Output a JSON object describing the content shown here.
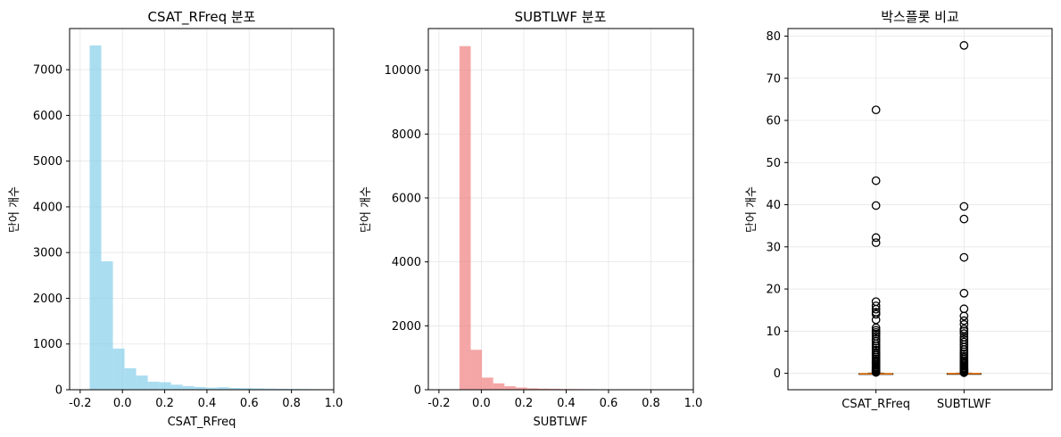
{
  "chart_data": [
    {
      "type": "bar",
      "subtype": "histogram",
      "title": "CSAT_RFreq 분포",
      "xlabel": "CSAT_RFreq",
      "ylabel": "단어 개수",
      "xlim": [
        -0.25,
        1.0
      ],
      "ylim": [
        0,
        7900
      ],
      "xticks": [
        -0.2,
        0.0,
        0.2,
        0.4,
        0.6,
        0.8,
        1.0
      ],
      "xtick_labels": [
        "-0.2",
        "0.0",
        "0.2",
        "0.4",
        "0.6",
        "0.8",
        "1.0"
      ],
      "yticks": [
        0,
        1000,
        2000,
        3000,
        4000,
        5000,
        6000,
        7000
      ],
      "yticklabels": [
        "0",
        "1000",
        "2000",
        "3000",
        "4000",
        "5000",
        "6000",
        "7000"
      ],
      "grid": true,
      "color": "#87ceeb",
      "bins": [
        {
          "x0": -0.155,
          "x1": -0.1,
          "count": 7530
        },
        {
          "x0": -0.1,
          "x1": -0.045,
          "count": 2810
        },
        {
          "x0": -0.045,
          "x1": 0.01,
          "count": 900
        },
        {
          "x0": 0.01,
          "x1": 0.065,
          "count": 470
        },
        {
          "x0": 0.065,
          "x1": 0.12,
          "count": 310
        },
        {
          "x0": 0.12,
          "x1": 0.175,
          "count": 175
        },
        {
          "x0": 0.175,
          "x1": 0.23,
          "count": 165
        },
        {
          "x0": 0.23,
          "x1": 0.285,
          "count": 110
        },
        {
          "x0": 0.285,
          "x1": 0.34,
          "count": 80
        },
        {
          "x0": 0.34,
          "x1": 0.395,
          "count": 60
        },
        {
          "x0": 0.395,
          "x1": 0.45,
          "count": 45
        },
        {
          "x0": 0.45,
          "x1": 0.505,
          "count": 55
        },
        {
          "x0": 0.505,
          "x1": 0.56,
          "count": 40
        },
        {
          "x0": 0.56,
          "x1": 0.615,
          "count": 35
        },
        {
          "x0": 0.615,
          "x1": 0.67,
          "count": 30
        },
        {
          "x0": 0.67,
          "x1": 0.725,
          "count": 25
        },
        {
          "x0": 0.725,
          "x1": 0.78,
          "count": 20
        },
        {
          "x0": 0.78,
          "x1": 0.835,
          "count": 18
        },
        {
          "x0": 0.835,
          "x1": 0.89,
          "count": 15
        },
        {
          "x0": 0.89,
          "x1": 0.945,
          "count": 12
        }
      ]
    },
    {
      "type": "bar",
      "subtype": "histogram",
      "title": "SUBTLWF 분포",
      "xlabel": "SUBTLWF",
      "ylabel": "단어 개수",
      "xlim": [
        -0.25,
        1.0
      ],
      "ylim": [
        0,
        11300
      ],
      "xticks": [
        -0.2,
        0.0,
        0.2,
        0.4,
        0.6,
        0.8,
        1.0
      ],
      "xtick_labels": [
        "-0.2",
        "0.0",
        "0.2",
        "0.4",
        "0.6",
        "0.8",
        "1.0"
      ],
      "yticks": [
        0,
        2000,
        4000,
        6000,
        8000,
        10000
      ],
      "yticklabels": [
        "0",
        "2000",
        "4000",
        "6000",
        "8000",
        "10000"
      ],
      "grid": true,
      "color": "#f08080",
      "bins": [
        {
          "x0": -0.103,
          "x1": -0.05,
          "count": 10750
        },
        {
          "x0": -0.05,
          "x1": 0.003,
          "count": 1250
        },
        {
          "x0": 0.003,
          "x1": 0.056,
          "count": 380
        },
        {
          "x0": 0.056,
          "x1": 0.109,
          "count": 200
        },
        {
          "x0": 0.109,
          "x1": 0.162,
          "count": 110
        },
        {
          "x0": 0.162,
          "x1": 0.215,
          "count": 70
        },
        {
          "x0": 0.215,
          "x1": 0.268,
          "count": 45
        },
        {
          "x0": 0.268,
          "x1": 0.321,
          "count": 35
        },
        {
          "x0": 0.321,
          "x1": 0.374,
          "count": 30
        },
        {
          "x0": 0.374,
          "x1": 0.427,
          "count": 22
        },
        {
          "x0": 0.427,
          "x1": 0.48,
          "count": 20
        },
        {
          "x0": 0.48,
          "x1": 0.533,
          "count": 18
        },
        {
          "x0": 0.533,
          "x1": 0.586,
          "count": 15
        },
        {
          "x0": 0.586,
          "x1": 0.639,
          "count": 12
        },
        {
          "x0": 0.639,
          "x1": 0.692,
          "count": 12
        },
        {
          "x0": 0.692,
          "x1": 0.745,
          "count": 10
        },
        {
          "x0": 0.745,
          "x1": 0.798,
          "count": 10
        },
        {
          "x0": 0.798,
          "x1": 0.851,
          "count": 8
        },
        {
          "x0": 0.851,
          "x1": 0.904,
          "count": 8
        },
        {
          "x0": 0.904,
          "x1": 0.957,
          "count": 7
        }
      ]
    },
    {
      "type": "scatter",
      "subtype": "boxplot",
      "title": "박스플롯 비교",
      "xlabel": "",
      "ylabel": "단어 개수",
      "categories": [
        "CSAT_RFreq",
        "SUBTLWF"
      ],
      "ylim": [
        -3.9,
        81.8
      ],
      "yticks": [
        0,
        10,
        20,
        30,
        40,
        50,
        60,
        70,
        80
      ],
      "yticklabels": [
        "0",
        "10",
        "20",
        "30",
        "40",
        "50",
        "60",
        "70",
        "80"
      ],
      "grid": true,
      "median_color": "#ff7f0e",
      "boxes": [
        {
          "name": "CSAT_RFreq",
          "q1": -0.15,
          "median": -0.12,
          "q3": -0.05,
          "whisker_low": -0.16,
          "whisker_high": 0.05,
          "outliers": [
            62.5,
            45.7,
            39.8,
            32.2,
            31.0,
            17.0,
            16.0,
            15.2,
            14.5,
            14.0,
            12.7,
            10.8,
            10.2,
            9.7,
            9.3,
            8.8,
            8.2,
            7.6,
            7.0,
            6.5,
            6.0,
            5.5,
            5.0,
            4.6,
            4.2,
            3.8,
            3.4,
            3.0,
            2.7,
            2.4,
            2.1,
            1.8,
            1.5,
            1.3,
            1.1,
            0.9,
            0.7,
            0.5,
            0.35,
            0.2
          ]
        },
        {
          "name": "SUBTLWF",
          "q1": -0.09,
          "median": -0.07,
          "q3": -0.03,
          "whisker_low": -0.1,
          "whisker_high": 0.03,
          "outliers": [
            77.8,
            39.6,
            36.6,
            27.5,
            19.0,
            15.3,
            13.6,
            12.5,
            11.6,
            10.5,
            10.0,
            9.4,
            8.6,
            8.0,
            7.4,
            6.8,
            6.2,
            5.6,
            5.1,
            4.6,
            4.1,
            3.7,
            3.3,
            2.9,
            2.6,
            2.3,
            2.0,
            1.7,
            1.4,
            1.2,
            1.0,
            0.8,
            0.6,
            0.45,
            0.3,
            0.15
          ]
        }
      ]
    }
  ]
}
